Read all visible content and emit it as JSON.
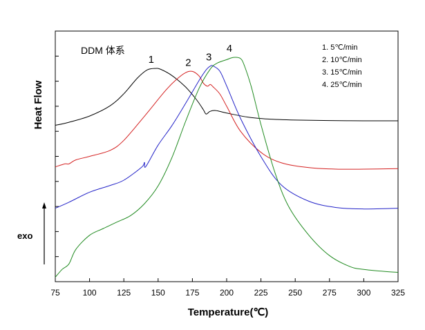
{
  "chart_data": {
    "type": "line",
    "title": "",
    "annotation": "DDM 体系",
    "xlabel": "Temperature(℃)",
    "ylabel": "Heat Flow",
    "exo_label": "exo",
    "xlim": [
      75,
      325
    ],
    "x_ticks": [
      75,
      100,
      125,
      150,
      175,
      200,
      225,
      250,
      275,
      300,
      325
    ],
    "y_ticks": 9,
    "y_tick_labels": false,
    "grid": false,
    "legend_placement": "top-right",
    "legend": [
      "1.   5℃/min",
      "2.  10℃/min",
      "3.  15℃/min",
      "4.  25℃/min"
    ],
    "series": [
      {
        "name": "1",
        "color": "#000000",
        "x": [
          75,
          85,
          100,
          115,
          125,
          135,
          142,
          148,
          152,
          160,
          170,
          178,
          183,
          185,
          188,
          192,
          200,
          215,
          230,
          250,
          275,
          300,
          325
        ],
        "y": [
          0.624,
          0.636,
          0.661,
          0.702,
          0.75,
          0.813,
          0.845,
          0.851,
          0.847,
          0.823,
          0.777,
          0.726,
          0.686,
          0.669,
          0.68,
          0.683,
          0.673,
          0.657,
          0.649,
          0.645,
          0.643,
          0.642,
          0.642
        ]
      },
      {
        "name": "2",
        "color": "#d42020",
        "x": [
          75,
          82,
          85,
          90,
          100,
          115,
          125,
          140,
          155,
          163,
          170,
          175,
          180,
          183,
          186,
          188,
          190,
          195,
          200,
          210,
          225,
          240,
          260,
          280,
          300,
          325
        ],
        "y": [
          0.458,
          0.47,
          0.47,
          0.486,
          0.5,
          0.524,
          0.564,
          0.66,
          0.76,
          0.805,
          0.834,
          0.839,
          0.82,
          0.792,
          0.78,
          0.787,
          0.778,
          0.749,
          0.7,
          0.601,
          0.516,
          0.474,
          0.455,
          0.449,
          0.449,
          0.451
        ]
      },
      {
        "name": "3",
        "color": "#2323c8",
        "x": [
          75,
          85,
          100,
          115,
          125,
          138,
          140,
          141,
          150,
          160,
          170,
          180,
          185,
          188,
          190,
          195,
          200,
          210,
          225,
          240,
          260,
          280,
          300,
          325
        ],
        "y": [
          0.293,
          0.317,
          0.357,
          0.384,
          0.405,
          0.457,
          0.476,
          0.459,
          0.545,
          0.622,
          0.711,
          0.804,
          0.845,
          0.86,
          0.861,
          0.84,
          0.781,
          0.653,
          0.499,
          0.385,
          0.321,
          0.296,
          0.29,
          0.293
        ]
      },
      {
        "name": "4",
        "color": "#1f8a1f",
        "x": [
          75,
          80,
          85,
          90,
          100,
          110,
          120,
          130,
          140,
          150,
          160,
          170,
          180,
          188,
          193,
          200,
          205,
          210,
          213,
          218,
          225,
          235,
          245,
          260,
          275,
          290,
          300,
          315,
          325
        ],
        "y": [
          0.018,
          0.049,
          0.071,
          0.129,
          0.185,
          0.212,
          0.238,
          0.264,
          0.311,
          0.382,
          0.494,
          0.639,
          0.773,
          0.848,
          0.872,
          0.886,
          0.895,
          0.891,
          0.861,
          0.777,
          0.627,
          0.439,
          0.302,
          0.185,
          0.104,
          0.06,
          0.049,
          0.041,
          0.037
        ]
      }
    ]
  }
}
